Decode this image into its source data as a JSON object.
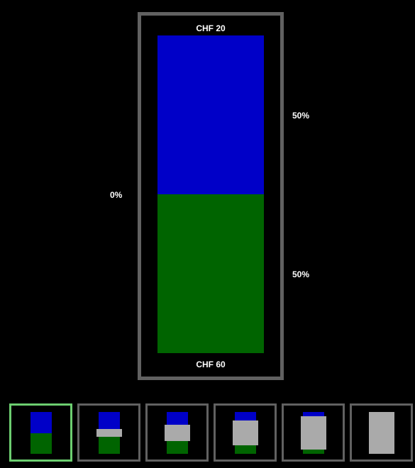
{
  "colors": {
    "background": "#000000",
    "frame": "#616161",
    "selected_frame": "#6cce70",
    "blue": "#0000c8",
    "green": "#006400",
    "cover": "#aaaaaa"
  },
  "main": {
    "top_label": "CHF  20",
    "bottom_label": "CHF  60",
    "left_percent": "0%",
    "upper_percent": "50%",
    "lower_percent": "50%",
    "blue_fraction": 0.5,
    "green_fraction": 0.5
  },
  "thumbnails": [
    {
      "option": 1,
      "selected": true,
      "cover_fraction": 0.0
    },
    {
      "option": 2,
      "selected": false,
      "cover_fraction": 0.2
    },
    {
      "option": 3,
      "selected": false,
      "cover_fraction": 0.4
    },
    {
      "option": 4,
      "selected": false,
      "cover_fraction": 0.6
    },
    {
      "option": 5,
      "selected": false,
      "cover_fraction": 0.8
    },
    {
      "option": 6,
      "selected": false,
      "cover_fraction": 1.0
    }
  ]
}
